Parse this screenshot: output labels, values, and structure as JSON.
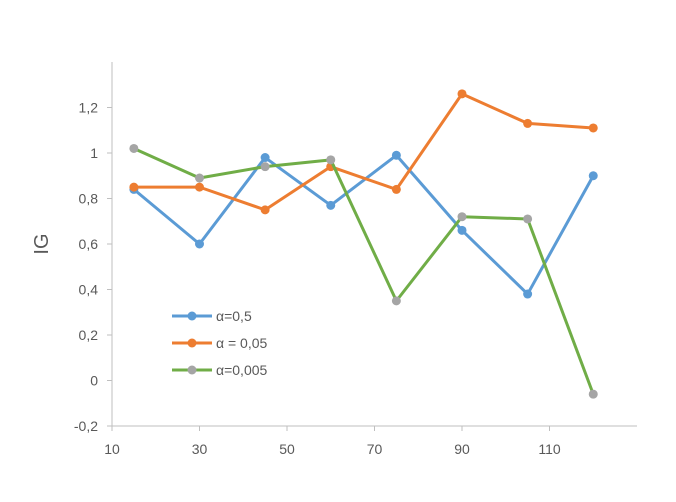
{
  "chart_data": {
    "type": "line",
    "title": "",
    "xlabel": "",
    "ylabel": "IG",
    "xlim": [
      10,
      130
    ],
    "ylim": [
      -0.2,
      1.4
    ],
    "x_ticks": [
      "10",
      "30",
      "50",
      "70",
      "90",
      "110"
    ],
    "y_ticks": [
      "-0,2",
      "0",
      "0,2",
      "0,4",
      "0,6",
      "0,8",
      "1",
      "1,2"
    ],
    "grid": false,
    "legend_position": "left-lower-inside",
    "x": [
      15,
      30,
      45,
      60,
      75,
      90,
      105,
      120
    ],
    "series": [
      {
        "name": "α=0,5",
        "line_color": "#5b9bd5",
        "marker_color": "#5b9bd5",
        "values": [
          0.84,
          0.6,
          0.98,
          0.77,
          0.99,
          0.66,
          0.38,
          0.9
        ]
      },
      {
        "name": "α = 0,05",
        "line_color": "#ed7d31",
        "marker_color": "#ed7d31",
        "values": [
          0.85,
          0.85,
          0.75,
          0.94,
          0.84,
          1.26,
          1.13,
          1.11
        ]
      },
      {
        "name": "α=0,005",
        "line_color": "#70ad47",
        "marker_color": "#a5a5a5",
        "values": [
          1.02,
          0.89,
          0.94,
          0.97,
          0.35,
          0.72,
          0.71,
          -0.06
        ]
      }
    ]
  }
}
